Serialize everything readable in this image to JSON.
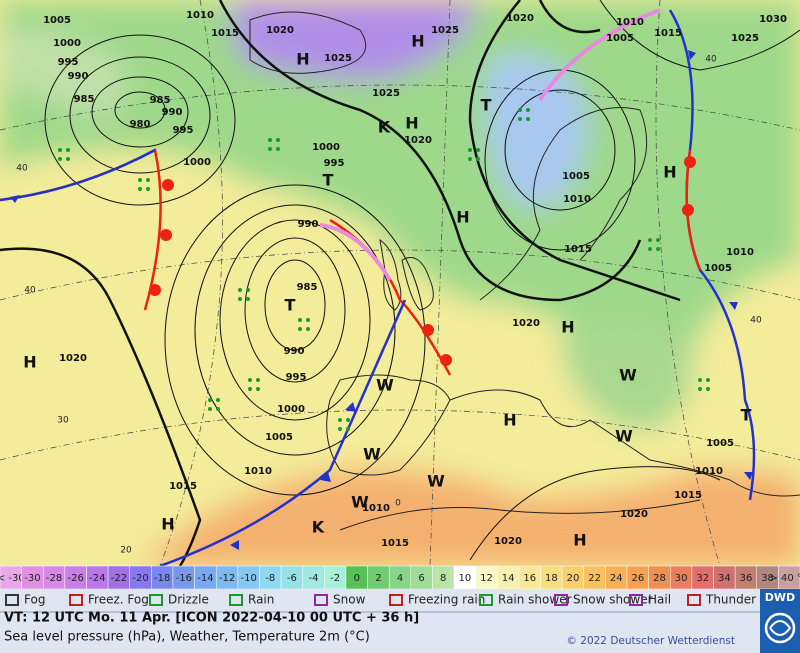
{
  "map": {
    "pressure_labels": [
      "1005",
      "1000",
      "995",
      "990",
      "985",
      "980",
      "985",
      "990",
      "995",
      "1000",
      "1010",
      "1015",
      "1020",
      "1025",
      "1025",
      "1020",
      "1025",
      "1020",
      "1000",
      "995",
      "990",
      "985",
      "990",
      "995",
      "1000",
      "1005",
      "1010",
      "1015",
      "1020",
      "1010",
      "1005",
      "1015",
      "1025",
      "1030",
      "1005",
      "1010",
      "1015",
      "1020",
      "1005",
      "1010",
      "1005",
      "1010",
      "1015",
      "1020",
      "1020",
      "1015",
      "1010"
    ],
    "temperature_labels": [
      "40",
      "40",
      "30",
      "20",
      "40",
      "40",
      "0"
    ],
    "centers": [
      "H",
      "H",
      "H",
      "H",
      "H",
      "H",
      "H",
      "H",
      "H",
      "H",
      "T",
      "T",
      "T",
      "T",
      "K",
      "K",
      "W",
      "W",
      "W",
      "W",
      "W",
      "W"
    ]
  },
  "legend": {
    "scale": [
      "< -30",
      "-30",
      "-28",
      "-26",
      "-24",
      "-22",
      "-20",
      "-18",
      "-16",
      "-14",
      "-12",
      "-10",
      "-8",
      "-6",
      "-4",
      "-2",
      "0",
      "2",
      "4",
      "6",
      "8",
      "10",
      "12",
      "14",
      "16",
      "18",
      "20",
      "22",
      "24",
      "26",
      "28",
      "30",
      "32",
      "34",
      "36",
      "38",
      "> 40 °C"
    ],
    "scale_colors": [
      "#e8a8e8",
      "#e090e0",
      "#d888e8",
      "#c880e8",
      "#b878e8",
      "#a070e8",
      "#8878f0",
      "#7888f0",
      "#7898f0",
      "#78a8f0",
      "#80b8f0",
      "#88c8f0",
      "#90d8f0",
      "#98e0e8",
      "#a0e8e0",
      "#a8f0d8",
      "#58c058",
      "#70cc70",
      "#88d488",
      "#a0dc98",
      "#b8e4a8",
      "#ffffff",
      "#f8f8c8",
      "#f8f0b0",
      "#f8e898",
      "#f8e080",
      "#f8d070",
      "#f8c060",
      "#f8b058",
      "#f8a050",
      "#f09050",
      "#e88060",
      "#e07070",
      "#d07070",
      "#c08070",
      "#b08880",
      "#c8a0a0"
    ],
    "symbols": [
      "Fog",
      "Freez. Fog",
      "Drizzle",
      "Rain",
      "Snow",
      "Freezing rain",
      "Rain shower",
      "Snow shower",
      "Hail",
      "Thunder storm"
    ]
  },
  "footer": {
    "valid_time": "VT: 12 UTC Mo.  11 Apr. [ICON 2022-04-10  00 UTC + 36 h]",
    "description": "Sea level pressure (hPa), Weather, Temperature 2m (°C)",
    "copyright": "© 2022 Deutscher Wetterdienst",
    "logo": "DWD"
  }
}
